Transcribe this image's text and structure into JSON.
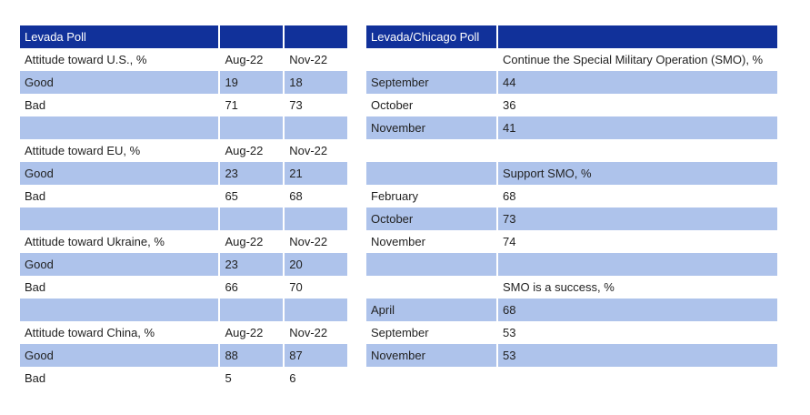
{
  "left_table": {
    "header": [
      "Levada Poll",
      "",
      ""
    ],
    "rows": [
      {
        "cells": [
          "Attitude toward U.S., %",
          "Aug-22",
          "Nov-22"
        ],
        "shade": false
      },
      {
        "cells": [
          "Good",
          "19",
          "18"
        ],
        "shade": true
      },
      {
        "cells": [
          "Bad",
          "71",
          "73"
        ],
        "shade": false
      },
      {
        "cells": [
          "",
          "",
          ""
        ],
        "shade": true
      },
      {
        "cells": [
          "Attitude toward EU, %",
          "Aug-22",
          "Nov-22"
        ],
        "shade": false
      },
      {
        "cells": [
          "Good",
          "23",
          "21"
        ],
        "shade": true
      },
      {
        "cells": [
          "Bad",
          "65",
          "68"
        ],
        "shade": false
      },
      {
        "cells": [
          "",
          "",
          ""
        ],
        "shade": true
      },
      {
        "cells": [
          "Attitude toward Ukraine, %",
          "Aug-22",
          "Nov-22"
        ],
        "shade": false
      },
      {
        "cells": [
          "Good",
          "23",
          "20"
        ],
        "shade": true
      },
      {
        "cells": [
          "Bad",
          "66",
          "70"
        ],
        "shade": false
      },
      {
        "cells": [
          "",
          "",
          ""
        ],
        "shade": true
      },
      {
        "cells": [
          "Attitude toward China, %",
          "Aug-22",
          "Nov-22"
        ],
        "shade": false
      },
      {
        "cells": [
          "Good",
          "88",
          "87"
        ],
        "shade": true
      },
      {
        "cells": [
          "Bad",
          "5",
          "6"
        ],
        "shade": false
      }
    ]
  },
  "right_table": {
    "header": [
      "Levada/Chicago Poll",
      ""
    ],
    "rows": [
      {
        "cells": [
          "",
          "Continue the Special Military Operation (SMO), %"
        ],
        "shade": false
      },
      {
        "cells": [
          "September",
          "44"
        ],
        "shade": true
      },
      {
        "cells": [
          "October",
          "36"
        ],
        "shade": false
      },
      {
        "cells": [
          "November",
          "41"
        ],
        "shade": true
      },
      {
        "cells": [
          "",
          ""
        ],
        "shade": false
      },
      {
        "cells": [
          "",
          "Support SMO, %"
        ],
        "shade": true
      },
      {
        "cells": [
          "February",
          "68"
        ],
        "shade": false
      },
      {
        "cells": [
          "October",
          "73"
        ],
        "shade": true
      },
      {
        "cells": [
          "November",
          "74"
        ],
        "shade": false
      },
      {
        "cells": [
          "",
          ""
        ],
        "shade": true
      },
      {
        "cells": [
          "",
          "SMO is a success, %"
        ],
        "shade": false
      },
      {
        "cells": [
          "April",
          "68"
        ],
        "shade": true
      },
      {
        "cells": [
          "September",
          "53"
        ],
        "shade": false
      },
      {
        "cells": [
          "November",
          "53"
        ],
        "shade": true
      }
    ]
  },
  "colors": {
    "header_bg": "#11319a",
    "header_text": "#ffffff",
    "shade": "#aec3eb"
  }
}
